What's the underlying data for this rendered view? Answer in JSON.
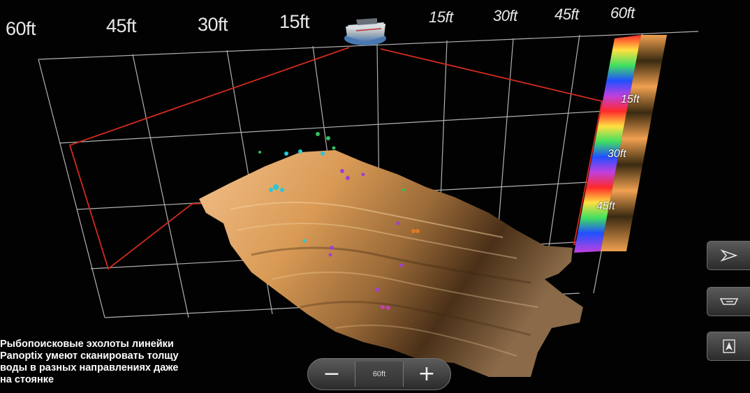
{
  "range_axis": {
    "left_labels": [
      "60ft",
      "45ft",
      "30ft",
      "15ft"
    ],
    "right_labels": [
      "15ft",
      "30ft",
      "45ft",
      "60ft"
    ]
  },
  "depth_scale": {
    "labels": [
      "15ft",
      "30ft",
      "45ft"
    ]
  },
  "view_buttons": [
    {
      "icon": "perspective-view-icon"
    },
    {
      "icon": "side-view-icon"
    },
    {
      "icon": "top-view-icon"
    }
  ],
  "zoom": {
    "minus_label": "−",
    "value": "60ft",
    "plus_label": "+"
  },
  "caption": "Рыбопоисковые эхолоты линейки\nPanoptix умеют сканировать толщу\nводы  в разных направлениях даже\nна стоянке",
  "colors": {
    "grid": "#d8d8d8",
    "scan_outline": "#d42a1f",
    "bottom_light": "#e8b279",
    "bottom_dark": "#2a1a0a",
    "fish_cyan": "#28c8d8",
    "fish_purple": "#a040d0",
    "fish_green": "#30c060"
  }
}
